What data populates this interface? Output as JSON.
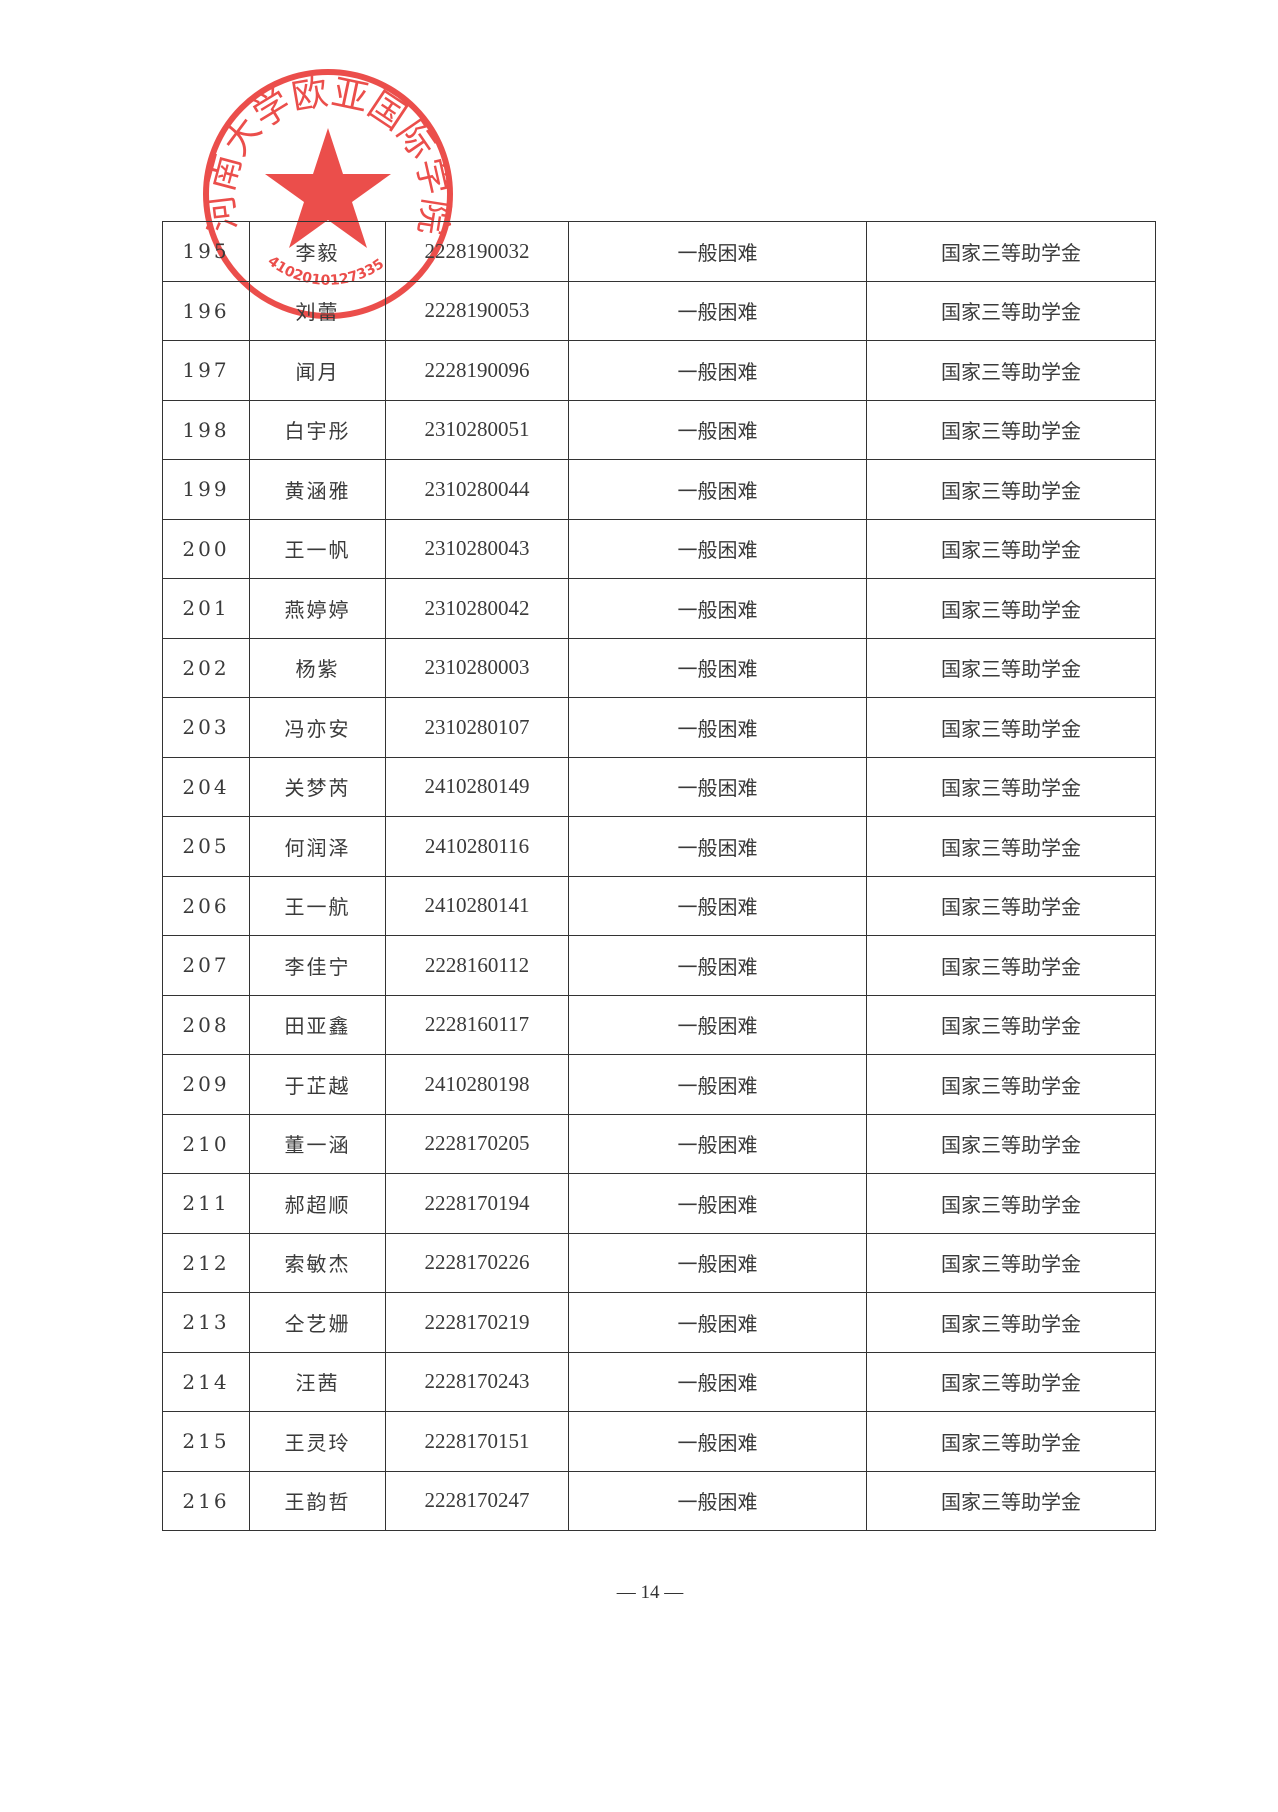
{
  "table": {
    "rows": [
      [
        "195",
        "李毅",
        "2228190032",
        "一般困难",
        "国家三等助学金"
      ],
      [
        "196",
        "刘蕾",
        "2228190053",
        "一般困难",
        "国家三等助学金"
      ],
      [
        "197",
        "闻月",
        "2228190096",
        "一般困难",
        "国家三等助学金"
      ],
      [
        "198",
        "白宇彤",
        "2310280051",
        "一般困难",
        "国家三等助学金"
      ],
      [
        "199",
        "黄涵雅",
        "2310280044",
        "一般困难",
        "国家三等助学金"
      ],
      [
        "200",
        "王一帆",
        "2310280043",
        "一般困难",
        "国家三等助学金"
      ],
      [
        "201",
        "燕婷婷",
        "2310280042",
        "一般困难",
        "国家三等助学金"
      ],
      [
        "202",
        "杨紫",
        "2310280003",
        "一般困难",
        "国家三等助学金"
      ],
      [
        "203",
        "冯亦安",
        "2310280107",
        "一般困难",
        "国家三等助学金"
      ],
      [
        "204",
        "关梦芮",
        "2410280149",
        "一般困难",
        "国家三等助学金"
      ],
      [
        "205",
        "何润泽",
        "2410280116",
        "一般困难",
        "国家三等助学金"
      ],
      [
        "206",
        "王一航",
        "2410280141",
        "一般困难",
        "国家三等助学金"
      ],
      [
        "207",
        "李佳宁",
        "2228160112",
        "一般困难",
        "国家三等助学金"
      ],
      [
        "208",
        "田亚鑫",
        "2228160117",
        "一般困难",
        "国家三等助学金"
      ],
      [
        "209",
        "于芷越",
        "2410280198",
        "一般困难",
        "国家三等助学金"
      ],
      [
        "210",
        "董一涵",
        "2228170205",
        "一般困难",
        "国家三等助学金"
      ],
      [
        "211",
        "郝超顺",
        "2228170194",
        "一般困难",
        "国家三等助学金"
      ],
      [
        "212",
        "索敏杰",
        "2228170226",
        "一般困难",
        "国家三等助学金"
      ],
      [
        "213",
        "仝艺姗",
        "2228170219",
        "一般困难",
        "国家三等助学金"
      ],
      [
        "214",
        "汪茜",
        "2228170243",
        "一般困难",
        "国家三等助学金"
      ],
      [
        "215",
        "王灵玲",
        "2228170151",
        "一般困难",
        "国家三等助学金"
      ],
      [
        "216",
        "王韵哲",
        "2228170247",
        "一般困难",
        "国家三等助学金"
      ]
    ]
  },
  "page_number": "— 14 —",
  "seal": {
    "text": "河南大学欧亚国际学院",
    "code": "4102010127335",
    "color": "#e8302c"
  }
}
